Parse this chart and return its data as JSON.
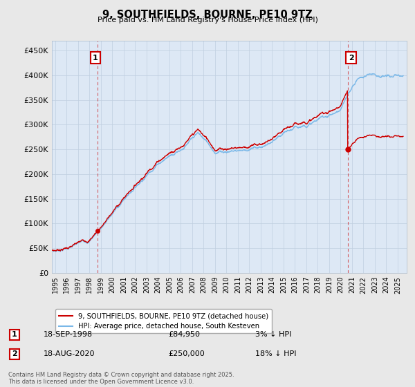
{
  "title": "9, SOUTHFIELDS, BOURNE, PE10 9TZ",
  "subtitle": "Price paid vs. HM Land Registry's House Price Index (HPI)",
  "ylabel_ticks": [
    "£0",
    "£50K",
    "£100K",
    "£150K",
    "£200K",
    "£250K",
    "£300K",
    "£350K",
    "£400K",
    "£450K"
  ],
  "ytick_values": [
    0,
    50000,
    100000,
    150000,
    200000,
    250000,
    300000,
    350000,
    400000,
    450000
  ],
  "ylim": [
    0,
    470000
  ],
  "xlim_start": 1994.7,
  "xlim_end": 2025.8,
  "purchase1_date": 1998.72,
  "purchase1_price": 84950,
  "purchase1_label": "1",
  "purchase2_date": 2020.63,
  "purchase2_price": 250000,
  "purchase2_label": "2",
  "hpi_color": "#7ab8e8",
  "price_color": "#cc0000",
  "vline_color": "#cc0000",
  "plot_bg_color": "#dde8f5",
  "background_color": "#e8e8e8",
  "legend_label_price": "9, SOUTHFIELDS, BOURNE, PE10 9TZ (detached house)",
  "legend_label_hpi": "HPI: Average price, detached house, South Kesteven",
  "note1_box": "1",
  "note1_date": "18-SEP-1998",
  "note1_price": "£84,950",
  "note1_hpi": "3% ↓ HPI",
  "note2_box": "2",
  "note2_date": "18-AUG-2020",
  "note2_price": "£250,000",
  "note2_hpi": "18% ↓ HPI",
  "footer": "Contains HM Land Registry data © Crown copyright and database right 2025.\nThis data is licensed under the Open Government Licence v3.0."
}
